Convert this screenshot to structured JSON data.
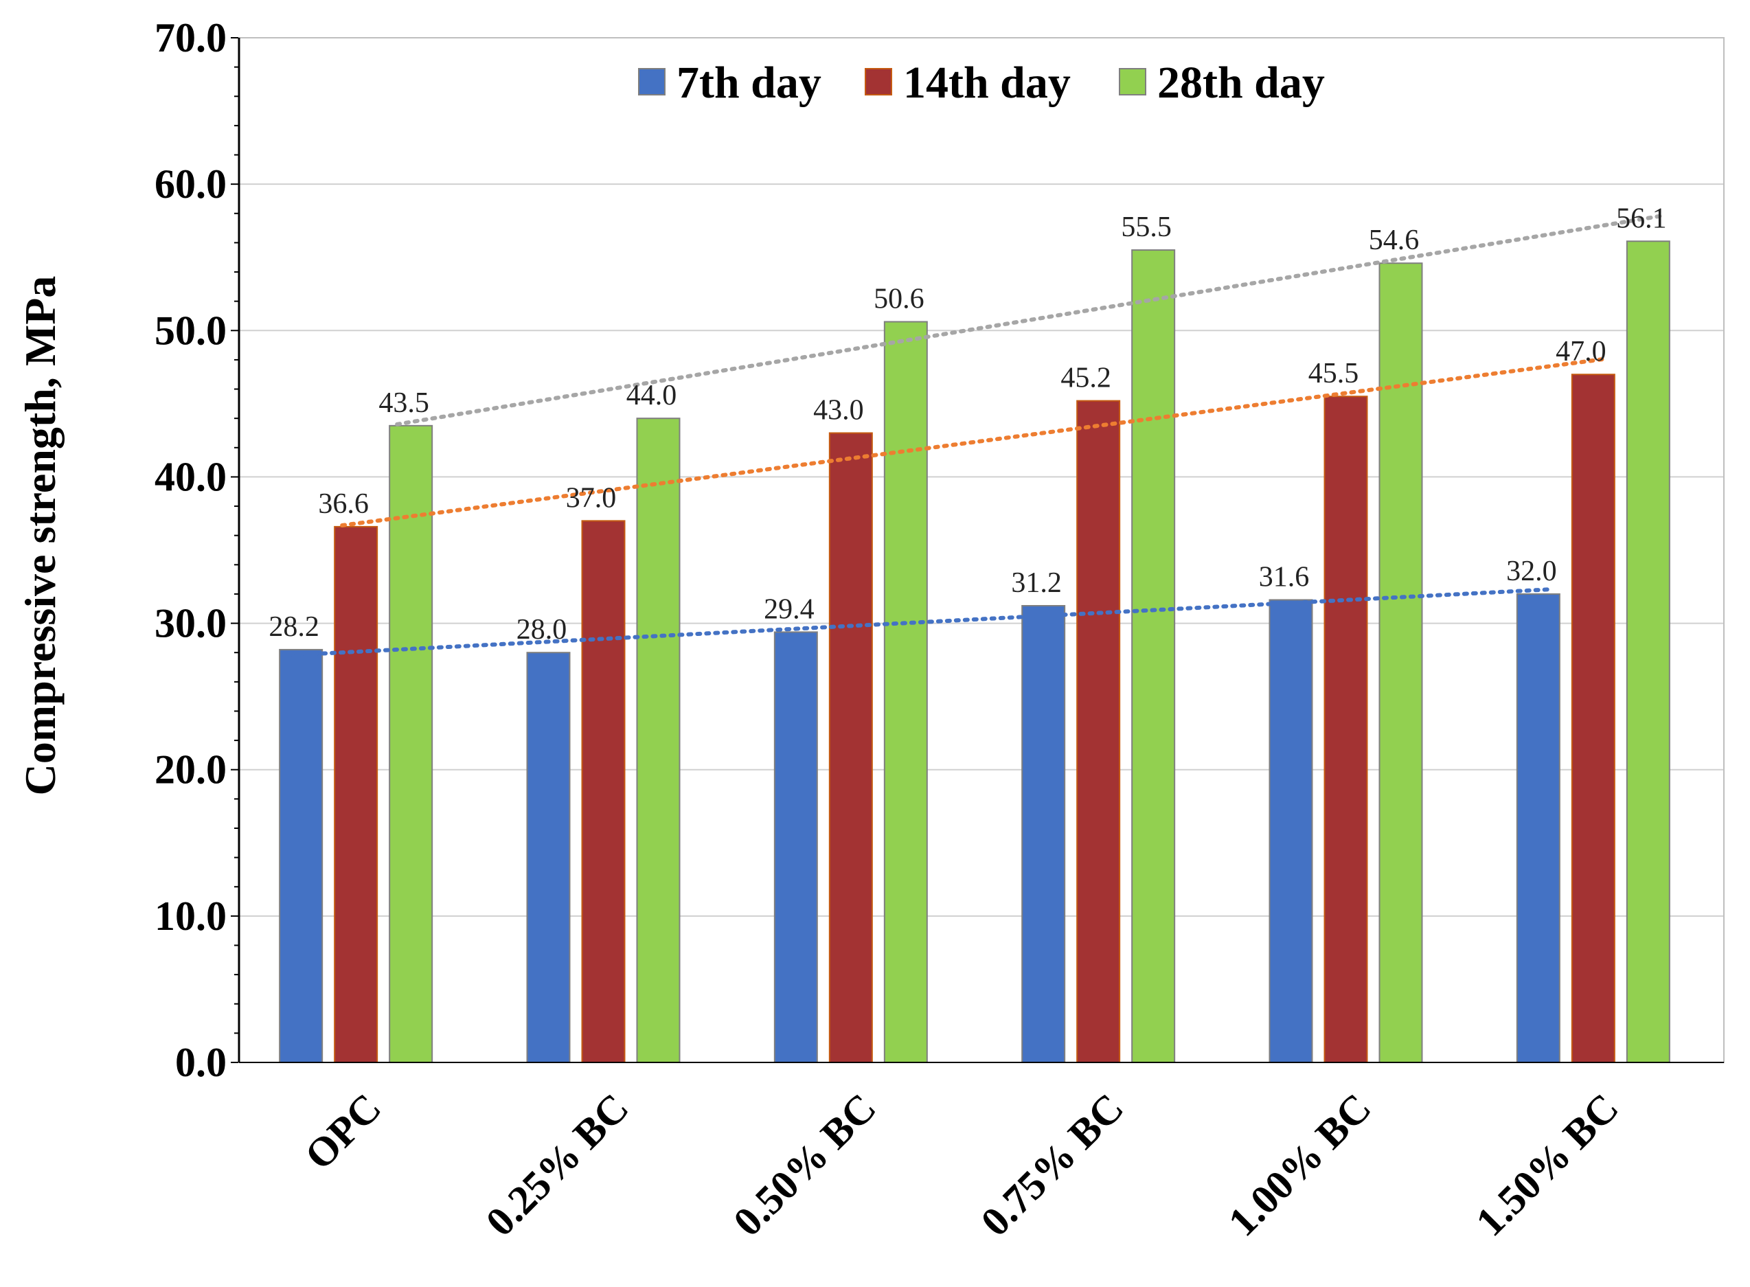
{
  "chart_data": {
    "type": "bar",
    "categories": [
      "OPC",
      "0.25% BC",
      "0.50% BC",
      "0.75% BC",
      "1.00% BC",
      "1.50% BC"
    ],
    "series": [
      {
        "name": "7th day",
        "values": [
          28.2,
          28.0,
          29.4,
          31.2,
          31.6,
          32.0
        ],
        "color": "#4472C4",
        "trend_color": "#4472C4"
      },
      {
        "name": "14th day",
        "values": [
          36.6,
          37.0,
          43.0,
          45.2,
          45.5,
          47.0
        ],
        "color": "#A33333",
        "trend_color": "#ED7D31"
      },
      {
        "name": "28th day",
        "values": [
          43.5,
          44.0,
          50.6,
          55.5,
          54.6,
          56.1
        ],
        "color": "#92D050",
        "trend_color": "#A6A6A6"
      }
    ],
    "data_labels": [
      [
        "28.2",
        "28.0",
        "29.4",
        "31.2",
        "31.6",
        "32.0"
      ],
      [
        "36.6",
        "37.0",
        "43.0",
        "45.2",
        "45.5",
        "47.0"
      ],
      [
        "43.5",
        "44.0",
        "50.6",
        "55.5",
        "54.6",
        "56.1"
      ]
    ],
    "ylabel": "Compressive strength, MPa",
    "xlabel": "",
    "ylim": [
      0,
      70
    ],
    "yticks": [
      "0.0",
      "10.0",
      "20.0",
      "30.0",
      "40.0",
      "50.0",
      "60.0",
      "70.0"
    ],
    "trendlines": "linear, dotted",
    "grid": true,
    "legend_position": "top-center"
  }
}
